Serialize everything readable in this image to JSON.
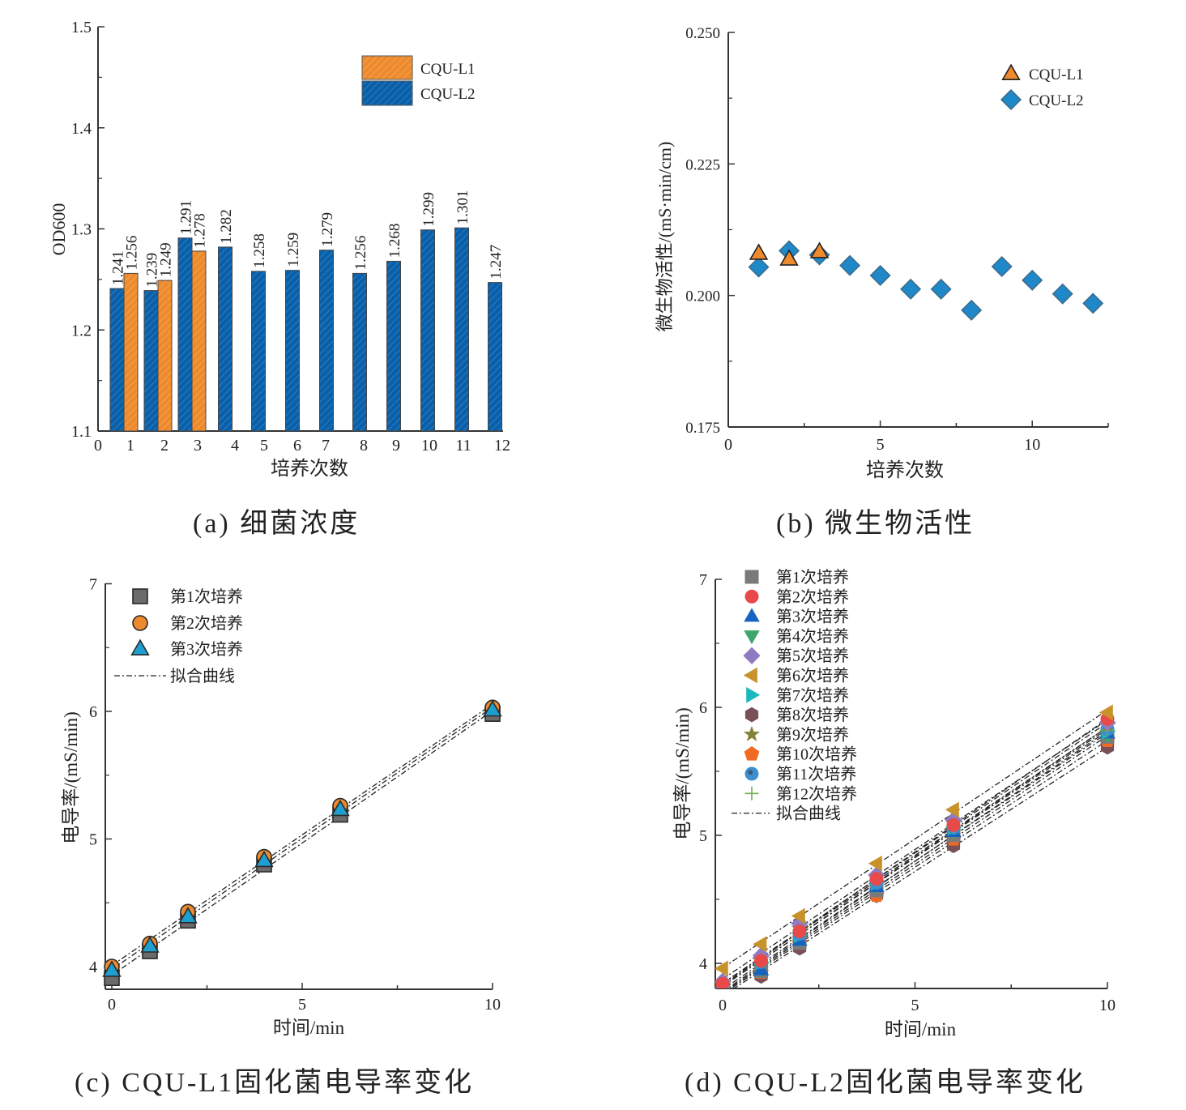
{
  "captions": {
    "a": "(a) 细菌浓度",
    "b": "(b) 微生物活性",
    "c": "(c) CQU-L1固化菌电导率变化",
    "d": "(d) CQU-L2固化菌电导率变化"
  },
  "colors": {
    "orange": "#EE8A2E",
    "blue": "#0A5FA8",
    "diamond": "#1E88C8",
    "axis": "#333333"
  },
  "chart_data": [
    {
      "id": "a",
      "type": "bar",
      "title": "",
      "xlabel": "培养次数",
      "ylabel": "OD600",
      "xlim": [
        0,
        12
      ],
      "ylim": [
        1.1,
        1.5
      ],
      "xticks": [
        "0",
        "1",
        "2",
        "3",
        "4",
        "5",
        "6",
        "7",
        "8",
        "9",
        "10",
        "11",
        "12"
      ],
      "yticks": [
        "1.1",
        "1.2",
        "1.3",
        "1.4",
        "1.5"
      ],
      "categories": [
        1,
        2,
        3,
        4,
        5,
        6,
        7,
        8,
        9,
        10,
        11,
        12
      ],
      "legend": {
        "position": "top-right",
        "entries": [
          "CQU-L1",
          "CQU-L2"
        ]
      },
      "series": [
        {
          "name": "CQU-L1",
          "color": "#EE8A2E",
          "values": [
            1.256,
            1.249,
            1.278,
            null,
            null,
            null,
            null,
            null,
            null,
            null,
            null,
            null
          ],
          "labels": [
            "1.256",
            "1.249",
            "1.278",
            "",
            "",
            "",
            "",
            "",
            "",
            "",
            "",
            ""
          ]
        },
        {
          "name": "CQU-L2",
          "color": "#0A5FA8",
          "values": [
            1.241,
            1.239,
            1.291,
            1.282,
            1.258,
            1.259,
            1.279,
            1.256,
            1.268,
            1.299,
            1.301,
            1.247
          ],
          "labels": [
            "1.241",
            "1.239",
            "1.291",
            "1.282",
            "1.258",
            "1.259",
            "1.279",
            "1.256",
            "1.268",
            "1.299",
            "1.301",
            "1.247"
          ]
        }
      ],
      "grid": false
    },
    {
      "id": "b",
      "type": "scatter",
      "title": "",
      "xlabel": "培养次数",
      "ylabel": "微生物活性/(mS·min/cm)",
      "xlim": [
        0,
        12.5
      ],
      "ylim": [
        0.175,
        0.25
      ],
      "xticks": [
        0,
        5,
        10
      ],
      "xtick_labels": [
        "0",
        "5",
        "10"
      ],
      "yticks": [
        0.175,
        0.2,
        0.225,
        0.25
      ],
      "ytick_labels": [
        "0.175",
        "0.200",
        "0.225",
        "0.250"
      ],
      "legend": {
        "position": "top-right",
        "entries": [
          "CQU-L1",
          "CQU-L2"
        ]
      },
      "series": [
        {
          "name": "CQU-L2",
          "marker": "diamond",
          "color": "#1E88C8",
          "x": [
            1,
            2,
            3,
            4,
            5,
            6,
            7,
            8,
            9,
            10,
            11,
            12
          ],
          "y": [
            0.2054,
            0.2085,
            0.2077,
            0.2057,
            0.2038,
            0.2012,
            0.2012,
            0.1972,
            0.2055,
            0.2029,
            0.2003,
            0.1985
          ]
        },
        {
          "name": "CQU-L1",
          "marker": "triangle",
          "color": "#EE8A2E",
          "x": [
            1,
            2,
            3
          ],
          "y": [
            0.208,
            0.2069,
            0.2083
          ]
        }
      ],
      "grid": false
    },
    {
      "id": "c",
      "type": "scatter",
      "title": "",
      "xlabel": "时间/min",
      "ylabel": "电导率/(mS/min)",
      "xlim": [
        -0.2,
        10
      ],
      "ylim": [
        3.82,
        7
      ],
      "xticks": [
        0,
        5,
        10
      ],
      "xtick_labels": [
        "0",
        "5",
        "10"
      ],
      "yticks": [
        4,
        5,
        6,
        7
      ],
      "ytick_labels": [
        "4",
        "5",
        "6",
        "7"
      ],
      "legend": {
        "position": "top-left",
        "entries": [
          "第1次培养",
          "第2次培养",
          "第3次培养",
          "拟合曲线"
        ]
      },
      "series": [
        {
          "name": "第1次培养",
          "marker": "square",
          "color": "#6B6B6B",
          "x": [
            0,
            1,
            2,
            4,
            6,
            10
          ],
          "y": [
            3.91,
            4.12,
            4.36,
            4.8,
            5.19,
            5.98
          ]
        },
        {
          "name": "第2次培养",
          "marker": "circle",
          "color": "#EE8A2E",
          "x": [
            0,
            1,
            2,
            4,
            6,
            10
          ],
          "y": [
            4.0,
            4.18,
            4.43,
            4.86,
            5.26,
            6.03
          ]
        },
        {
          "name": "第3次培养",
          "marker": "triangle",
          "color": "#1E9FD0",
          "x": [
            0,
            1,
            2,
            4,
            6,
            10
          ],
          "y": [
            3.97,
            4.16,
            4.39,
            4.83,
            5.23,
            6.01
          ]
        }
      ],
      "fit_label": "拟合曲线",
      "grid": false
    },
    {
      "id": "d",
      "type": "scatter",
      "title": "",
      "xlabel": "时间/min",
      "ylabel": "电导率/(mS/min)",
      "xlim": [
        0,
        10
      ],
      "ylim": [
        3.8,
        7
      ],
      "xticks": [
        0,
        5,
        10
      ],
      "xtick_labels": [
        "0",
        "5",
        "10"
      ],
      "yticks": [
        4,
        5,
        6,
        7
      ],
      "ytick_labels": [
        "4",
        "5",
        "6",
        "7"
      ],
      "legend": {
        "position": "top-left",
        "entries": [
          "第1次培养",
          "第2次培养",
          "第3次培养",
          "第4次培养",
          "第5次培养",
          "第6次培养",
          "第7次培养",
          "第8次培养",
          "第9次培养",
          "第10次培养",
          "第11次培养",
          "第12次培养",
          "拟合曲线"
        ]
      },
      "series": [
        {
          "name": "第1次培养",
          "marker": "square",
          "color": "#7A7A7A",
          "x": [
            0,
            1,
            2,
            4,
            6,
            10
          ],
          "y": [
            3.8,
            3.94,
            4.16,
            4.57,
            5.0,
            5.77
          ]
        },
        {
          "name": "第2次培养",
          "marker": "circle",
          "color": "#E84A4A",
          "x": [
            0,
            1,
            2,
            4,
            6,
            10
          ],
          "y": [
            3.84,
            4.02,
            4.25,
            4.66,
            5.08,
            5.91
          ]
        },
        {
          "name": "第3次培养",
          "marker": "triangle",
          "color": "#1565C0",
          "x": [
            0,
            1,
            2,
            4,
            6,
            10
          ],
          "y": [
            3.8,
            3.95,
            4.18,
            4.6,
            5.03,
            5.8
          ]
        },
        {
          "name": "第4次培养",
          "marker": "triangle-down",
          "color": "#3FA66B",
          "x": [
            0,
            1,
            2,
            4,
            6,
            10
          ],
          "y": [
            3.81,
            3.96,
            4.2,
            4.61,
            5.03,
            5.78
          ]
        },
        {
          "name": "第5次培养",
          "marker": "diamond",
          "color": "#8E7CC3",
          "x": [
            0,
            1,
            2,
            4,
            6,
            10
          ],
          "y": [
            3.86,
            4.06,
            4.31,
            4.69,
            5.12,
            5.88
          ]
        },
        {
          "name": "第6次培养",
          "marker": "triangle-left",
          "color": "#C8922A",
          "x": [
            0,
            1,
            2,
            4,
            6,
            10
          ],
          "y": [
            3.96,
            4.15,
            4.37,
            4.78,
            5.2,
            5.96
          ]
        },
        {
          "name": "第7次培养",
          "marker": "triangle-right",
          "color": "#1CB8C0",
          "x": [
            0,
            1,
            2,
            4,
            6,
            10
          ],
          "y": [
            3.82,
            4.01,
            4.22,
            4.63,
            5.06,
            5.81
          ]
        },
        {
          "name": "第8次培养",
          "marker": "hexagon",
          "color": "#7A5058",
          "x": [
            0,
            1,
            2,
            4,
            6,
            10
          ],
          "y": [
            3.79,
            3.9,
            4.12,
            4.53,
            4.92,
            5.69
          ]
        },
        {
          "name": "第9次培养",
          "marker": "star",
          "color": "#858236",
          "x": [
            0,
            1,
            2,
            4,
            6,
            10
          ],
          "y": [
            3.83,
            4.03,
            4.27,
            4.67,
            5.09,
            5.86
          ]
        },
        {
          "name": "第10次培养",
          "marker": "pentagon",
          "color": "#F06A22",
          "x": [
            0,
            1,
            2,
            4,
            6,
            10
          ],
          "y": [
            3.79,
            3.93,
            4.16,
            4.53,
            4.97,
            5.74
          ]
        },
        {
          "name": "第11次培养",
          "marker": "circle-dot",
          "color": "#3B8FD0",
          "x": [
            0,
            1,
            2,
            4,
            6,
            10
          ],
          "y": [
            3.82,
            4.01,
            4.23,
            4.63,
            5.06,
            5.83
          ]
        },
        {
          "name": "第12次培养",
          "marker": "plus",
          "color": "#6AB04C",
          "x": [
            0,
            1,
            2,
            4,
            6,
            10
          ],
          "y": [
            3.82,
            4.03,
            4.26,
            4.66,
            5.07,
            5.82
          ]
        }
      ],
      "fit_label": "拟合曲线",
      "grid": false
    }
  ]
}
